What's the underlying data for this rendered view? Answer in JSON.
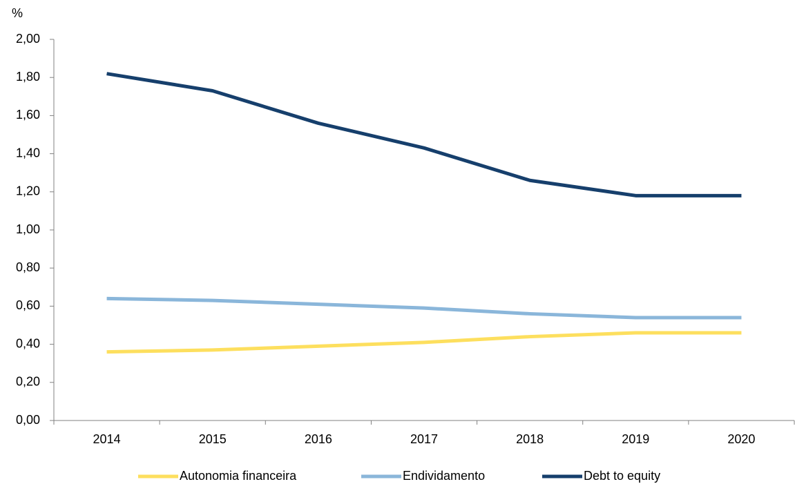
{
  "chart_data": {
    "type": "line",
    "y_axis_label": "%",
    "categories": [
      "2014",
      "2015",
      "2016",
      "2017",
      "2018",
      "2019",
      "2020"
    ],
    "series": [
      {
        "name": "Autonomia financeira",
        "color": "#fddf5e",
        "values": [
          0.36,
          0.37,
          0.39,
          0.41,
          0.44,
          0.46,
          0.46
        ]
      },
      {
        "name": "Endividamento",
        "color": "#8ab6da",
        "values": [
          0.64,
          0.63,
          0.61,
          0.59,
          0.56,
          0.54,
          0.54
        ]
      },
      {
        "name": "Debt to equity",
        "color": "#163f6c",
        "values": [
          1.82,
          1.73,
          1.56,
          1.43,
          1.26,
          1.18,
          1.18
        ]
      }
    ],
    "ylim": [
      0,
      2
    ],
    "yticks": [
      {
        "value": 0,
        "label": "0,00"
      },
      {
        "value": 0.2,
        "label": "0,20"
      },
      {
        "value": 0.4,
        "label": "0,40"
      },
      {
        "value": 0.6,
        "label": "0,60"
      },
      {
        "value": 0.8,
        "label": "0,80"
      },
      {
        "value": 1,
        "label": "1,00"
      },
      {
        "value": 1.2,
        "label": "1,20"
      },
      {
        "value": 1.4,
        "label": "1,40"
      },
      {
        "value": 1.6,
        "label": "1,60"
      },
      {
        "value": 1.8,
        "label": "1,80"
      },
      {
        "value": 2,
        "label": "2,00"
      }
    ],
    "legend": "bottom"
  }
}
